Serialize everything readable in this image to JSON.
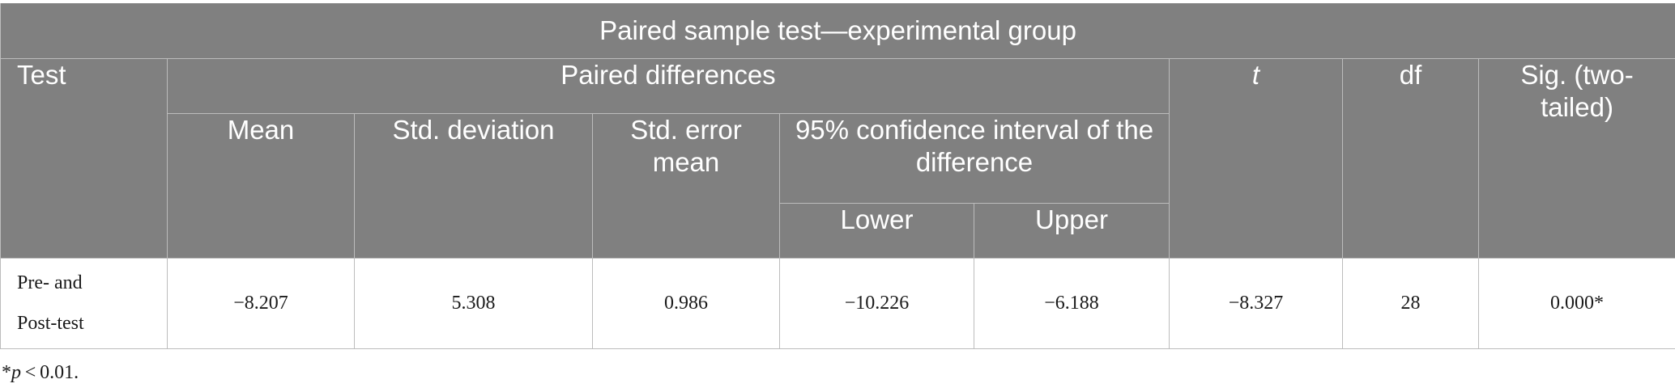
{
  "table": {
    "caption": "Paired sample test—experimental group",
    "headers": {
      "test": "Test",
      "paired_differences": "Paired differences",
      "mean": "Mean",
      "std_deviation": "Std. deviation",
      "std_error_mean": "Std. error mean",
      "confidence_interval": "95% confidence interval of the difference",
      "lower": "Lower",
      "upper": "Upper",
      "t": "t",
      "df": "df",
      "sig": "Sig. (two-tailed)"
    },
    "rows": [
      {
        "test_line1": "Pre- and",
        "test_line2": "Post-test",
        "mean": "−8.207",
        "std_deviation": "5.308",
        "std_error_mean": "0.986",
        "lower": "−10.226",
        "upper": "−6.188",
        "t": "−8.327",
        "df": "28",
        "sig": "0.000*"
      }
    ]
  },
  "footnote": {
    "star": "*",
    "p": "p",
    "rest": " < 0.01."
  }
}
